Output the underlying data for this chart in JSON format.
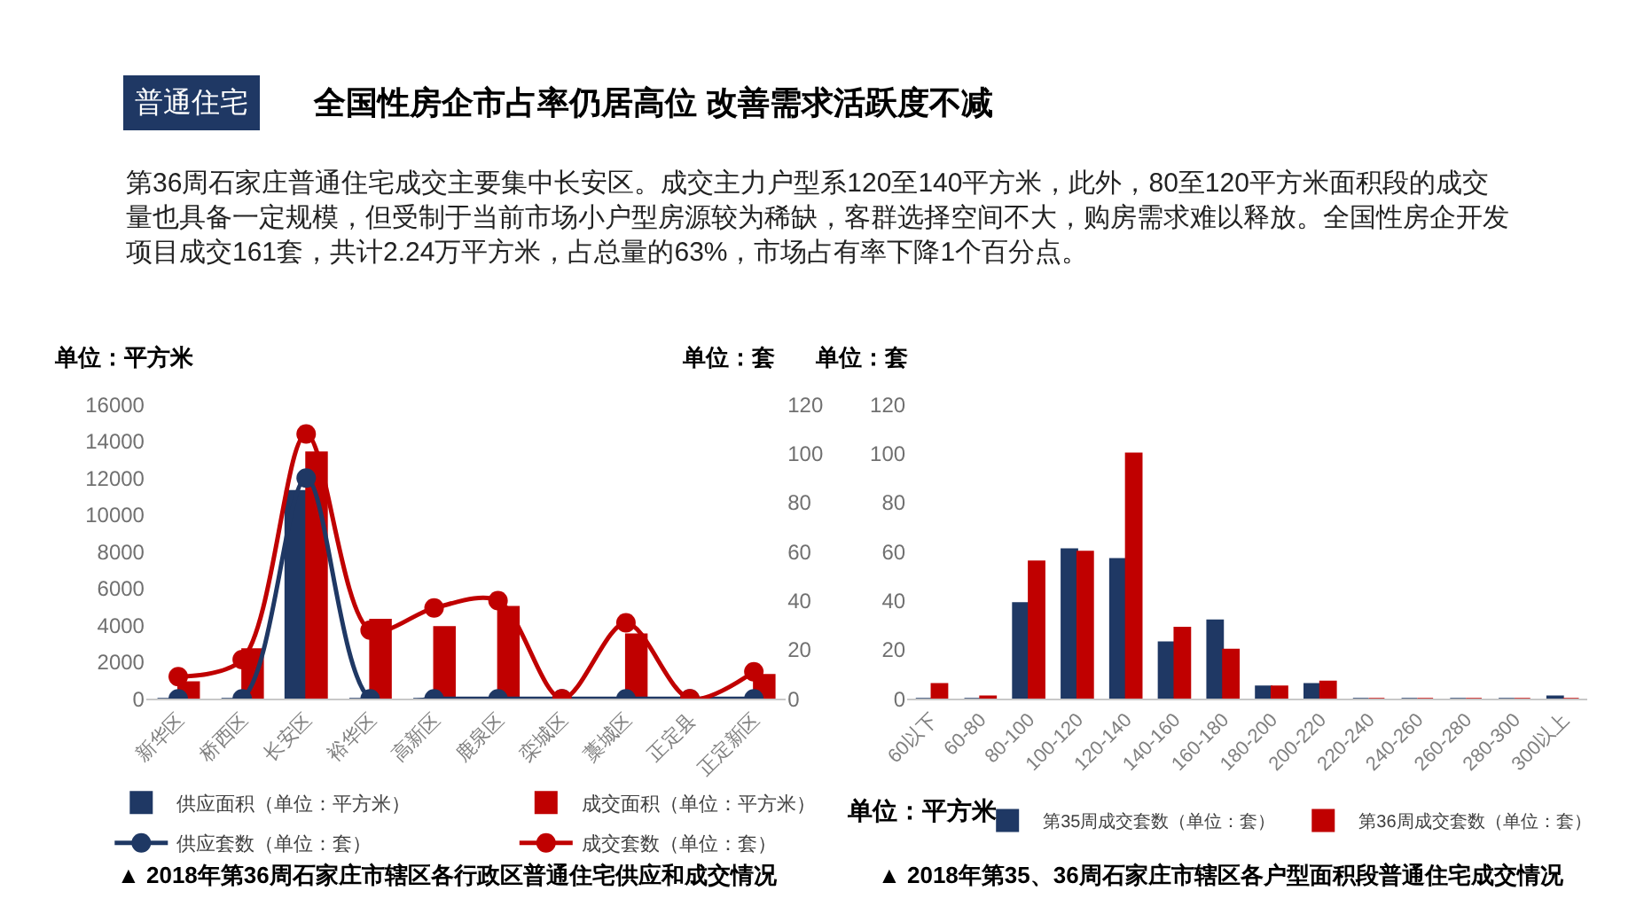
{
  "chart_data": [
    {
      "type": "bar",
      "title": "全国性房企市占率仍居高位 改善需求活跃度不减",
      "ylabel": "单位：平方米",
      "y2label": "单位：套",
      "annotations": [
        "普通住宅",
        "第36周石家庄普通住宅成交主要集中长安区。成交主力户型系120至140平方米，此外，80至120平方米面积段的成交量也具备一定规模，但受制于当前市场小户型房源较为稀缺，客群选择空间不大，购房需求难以释放。全国性房企开发项目成交161套，共计2.24万平方米，占总量的63%，市场占有率下降1个百分点。",
        "▲ 2018年第36周石家庄市辖区各行政区普通住宅供应和成交情况"
      ],
      "categories": [
        "新华区",
        "桥西区",
        "长安区",
        "裕华区",
        "高新区",
        "鹿泉区",
        "栾城区",
        "藁城区",
        "正定县",
        "正定新区"
      ],
      "series": [
        {
          "name": "供应面积（单位：平方米）",
          "type": "bar",
          "color": "#1f3864",
          "values": [
            0,
            0,
            11300,
            0,
            0,
            0,
            0,
            0,
            0,
            0
          ]
        },
        {
          "name": "成交面积（单位：平方米）",
          "type": "bar",
          "color": "#c00000",
          "values": [
            900,
            2700,
            13400,
            4300,
            3900,
            5000,
            0,
            3500,
            0,
            1300
          ]
        },
        {
          "name": "供应套数（单位：套）",
          "type": "line",
          "axis": "y2",
          "marker": "circle",
          "color": "#1f3864",
          "values": [
            0,
            0,
            90,
            0,
            0,
            0,
            0,
            0,
            0,
            0
          ]
        },
        {
          "name": "成交套数（单位：套）",
          "type": "line",
          "axis": "y2",
          "marker": "circle",
          "color": "#c00000",
          "values": [
            9,
            16,
            108,
            28,
            37,
            40,
            0,
            31,
            0,
            11
          ]
        }
      ],
      "ylim": [
        0,
        16000
      ],
      "yticks": [
        0,
        2000,
        4000,
        6000,
        8000,
        10000,
        12000,
        14000,
        16000
      ],
      "y2lim": [
        0,
        120
      ],
      "y2ticks": [
        0,
        20,
        40,
        60,
        80,
        100,
        120
      ],
      "legend": "bottom"
    },
    {
      "type": "bar",
      "xlabel": "单位：平方米",
      "ylabel": "单位：套",
      "annotations": [
        "▲ 2018年第35、36周石家庄市辖区各户型面积段普通住宅成交情况"
      ],
      "categories": [
        "60以下",
        "60-80",
        "80-100",
        "100-120",
        "120-140",
        "140-160",
        "160-180",
        "180-200",
        "200-220",
        "220-240",
        "240-260",
        "260-280",
        "280-300",
        "300以上"
      ],
      "series": [
        {
          "name": "第35周成交套数（单位：套）",
          "color": "#1f3864",
          "values": [
            0,
            0,
            39,
            61,
            57,
            23,
            32,
            5,
            6,
            0,
            0,
            0,
            0,
            1
          ]
        },
        {
          "name": "第36周成交套数（单位：套）",
          "color": "#c00000",
          "values": [
            6,
            1,
            56,
            60,
            100,
            29,
            20,
            5,
            7,
            0,
            0,
            0,
            0,
            0
          ]
        }
      ],
      "ylim": [
        0,
        120
      ],
      "yticks": [
        0,
        20,
        40,
        60,
        80,
        100,
        120
      ],
      "legend": "bottom"
    }
  ]
}
